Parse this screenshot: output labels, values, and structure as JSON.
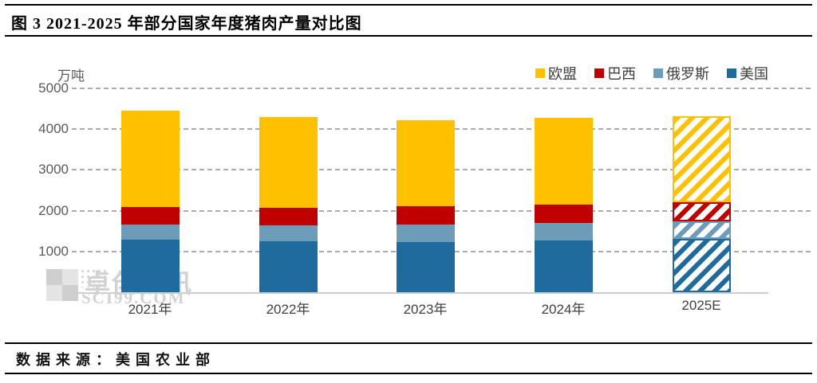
{
  "title": "图 3 2021-2025 年部分国家年度猪肉产量对比图",
  "source": {
    "text": "数据来源：美国农业部"
  },
  "watermark": {
    "name": "卓创资讯",
    "site": "SCI99.COM"
  },
  "chart_data": {
    "type": "bar",
    "stacked": true,
    "title": "图 3 2021-2025 年部分国家年度猪肉产量对比图",
    "unit_label": "万吨",
    "categories": [
      "2021年",
      "2022年",
      "2023年",
      "2024年",
      "2025E"
    ],
    "series": [
      {
        "name": "美国",
        "color": "#1F6B9E",
        "values": [
          1280,
          1250,
          1240,
          1270,
          1310
        ]
      },
      {
        "name": "俄罗斯",
        "color": "#6D9CB8",
        "values": [
          380,
          390,
          420,
          430,
          430
        ]
      },
      {
        "name": "巴西",
        "color": "#C00000",
        "values": [
          430,
          430,
          440,
          440,
          470
        ]
      },
      {
        "name": "欧盟",
        "color": "#FFC000",
        "values": [
          2360,
          2230,
          2100,
          2130,
          2110
        ]
      }
    ],
    "totals": [
      4450,
      4300,
      4200,
      4270,
      4320
    ],
    "legend": [
      "欧盟",
      "巴西",
      "俄罗斯",
      "美国"
    ],
    "legend_position": "top-right",
    "hatched_categories": [
      "2025E"
    ],
    "ylim": [
      0,
      5000
    ],
    "yticks": [
      0,
      1000,
      2000,
      3000,
      4000,
      5000
    ],
    "grid": "horizontal-dashed"
  }
}
